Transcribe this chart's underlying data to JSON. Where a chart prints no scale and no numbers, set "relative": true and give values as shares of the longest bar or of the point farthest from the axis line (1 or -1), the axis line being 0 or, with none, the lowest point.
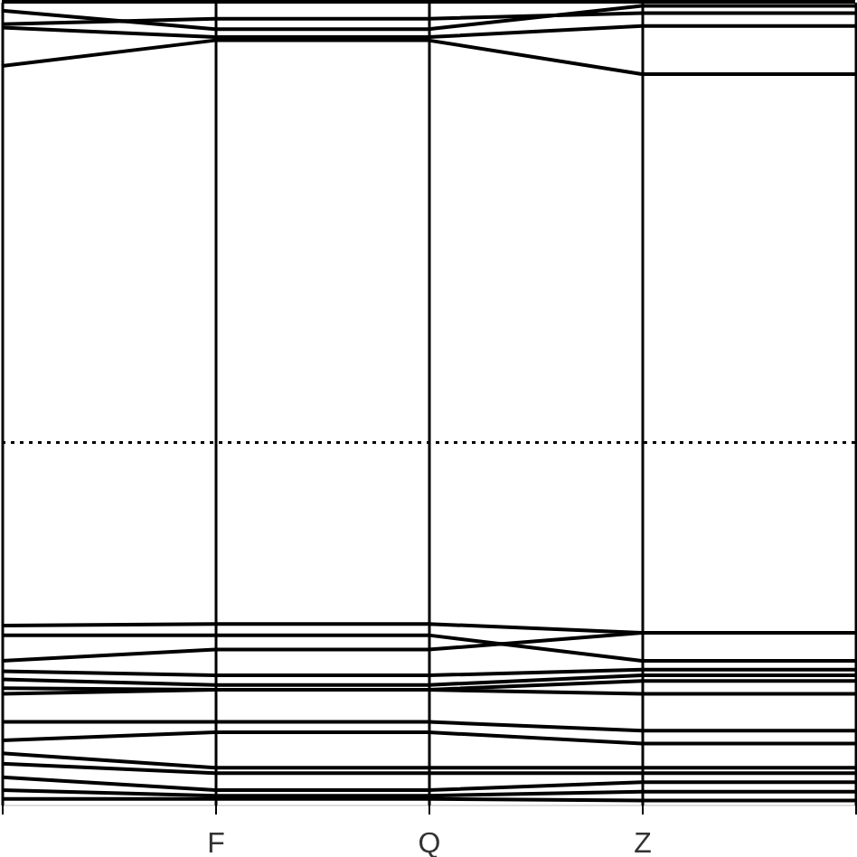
{
  "chart_data": {
    "type": "line",
    "relative": true,
    "categories": [
      null,
      "F",
      "Q",
      "Z",
      null
    ],
    "grid": "x",
    "tick_labels": "x",
    "legend": false,
    "marker": "none",
    "line_style": "solid",
    "ref_lines": [
      {
        "axis": "y",
        "value": 0.451,
        "line_style": "dotted",
        "color": "#000000"
      }
    ],
    "series": [
      {
        "color": "#000000",
        "values": [
          1.0,
          1.0,
          1.0,
          1.0,
          1.0
        ]
      },
      {
        "color": "#000000",
        "values": [
          0.989,
          0.966,
          0.966,
          0.995,
          0.995
        ]
      },
      {
        "color": "#000000",
        "values": [
          0.972,
          0.979,
          0.979,
          0.986,
          0.986
        ]
      },
      {
        "color": "#000000",
        "values": [
          0.968,
          0.956,
          0.956,
          0.97,
          0.97
        ]
      },
      {
        "color": "#000000",
        "values": [
          0.92,
          0.952,
          0.952,
          0.91,
          0.91
        ]
      },
      {
        "color": "#000000",
        "values": [
          0.223,
          0.225,
          0.225,
          0.214,
          0.214
        ]
      },
      {
        "color": "#000000",
        "values": [
          0.179,
          0.193,
          0.193,
          0.214,
          0.214
        ]
      },
      {
        "color": "#000000",
        "values": [
          0.211,
          0.211,
          0.211,
          0.179,
          0.179
        ]
      },
      {
        "color": "#000000",
        "values": [
          0.166,
          0.161,
          0.161,
          0.168,
          0.168
        ]
      },
      {
        "color": "#000000",
        "values": [
          0.156,
          0.149,
          0.149,
          0.161,
          0.161
        ]
      },
      {
        "color": "#000000",
        "values": [
          0.145,
          0.143,
          0.143,
          0.154,
          0.154
        ]
      },
      {
        "color": "#000000",
        "values": [
          0.138,
          0.143,
          0.143,
          0.138,
          0.138
        ]
      },
      {
        "color": "#000000",
        "values": [
          0.103,
          0.103,
          0.103,
          0.092,
          0.092
        ]
      },
      {
        "color": "#000000",
        "values": [
          0.08,
          0.09,
          0.09,
          0.076,
          0.076
        ]
      },
      {
        "color": "#000000",
        "values": [
          0.064,
          0.046,
          0.046,
          0.046,
          0.046
        ]
      },
      {
        "color": "#000000",
        "values": [
          0.051,
          0.039,
          0.039,
          0.039,
          0.039
        ]
      },
      {
        "color": "#000000",
        "values": [
          0.034,
          0.018,
          0.018,
          0.028,
          0.028
        ]
      },
      {
        "color": "#000000",
        "values": [
          0.018,
          0.011,
          0.011,
          0.016,
          0.016
        ]
      },
      {
        "color": "#000000",
        "values": [
          0.007,
          0.007,
          0.007,
          0.005,
          0.005
        ]
      }
    ]
  }
}
